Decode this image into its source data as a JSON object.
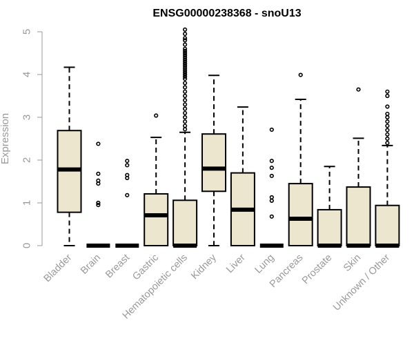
{
  "chart_data": {
    "type": "box",
    "title": "ENSG00000238368 - snoU13",
    "xlabel": "",
    "ylabel": "Expression",
    "ylim": [
      0,
      5
    ],
    "yticks": [
      0,
      1,
      2,
      3,
      4,
      5
    ],
    "grid": false,
    "legend": "none",
    "box_color": "#EDE6CE",
    "categories": [
      "Bladder",
      "Brain",
      "Breast",
      "Gastric",
      "Hematopoietic cells",
      "Kidney",
      "Liver",
      "Lung",
      "Pancreas",
      "Prostate",
      "Skin",
      "Unknown / Other"
    ],
    "boxes": [
      {
        "category": "Bladder",
        "whisker_low": 0,
        "q1": 0.78,
        "median": 1.78,
        "q3": 2.69,
        "whisker_high": 4.17,
        "outliers": []
      },
      {
        "category": "Brain",
        "whisker_low": 0,
        "q1": 0,
        "median": 0,
        "q3": 0,
        "whisker_high": 0,
        "outliers": [
          0.95,
          1.0,
          1.45,
          1.52,
          1.68,
          2.38
        ]
      },
      {
        "category": "Breast",
        "whisker_low": 0,
        "q1": 0,
        "median": 0,
        "q3": 0,
        "whisker_high": 0,
        "outliers": [
          1.18,
          1.58,
          1.65,
          1.88,
          1.98
        ]
      },
      {
        "category": "Gastric",
        "whisker_low": 0,
        "q1": 0,
        "median": 0.71,
        "q3": 1.21,
        "whisker_high": 2.53,
        "outliers": [
          3.04
        ]
      },
      {
        "category": "Hematopoietic cells",
        "whisker_low": 0,
        "q1": 0,
        "median": 0,
        "q3": 1.06,
        "whisker_high": 2.65,
        "outliers": [
          2.72,
          2.8,
          2.9,
          3.0,
          3.1,
          3.2,
          3.3,
          3.4,
          3.5,
          3.6,
          3.7,
          3.8,
          3.9,
          3.95,
          4.0,
          4.05,
          4.1,
          4.15,
          4.2,
          4.25,
          4.3,
          4.35,
          4.4,
          4.45,
          4.5,
          4.55,
          4.6,
          4.7,
          4.8,
          4.85,
          4.95,
          5.05
        ]
      },
      {
        "category": "Kidney",
        "whisker_low": 0,
        "q1": 1.27,
        "median": 1.8,
        "q3": 2.61,
        "whisker_high": 3.98,
        "outliers": []
      },
      {
        "category": "Liver",
        "whisker_low": 0,
        "q1": 0,
        "median": 0.84,
        "q3": 1.7,
        "whisker_high": 3.24,
        "outliers": []
      },
      {
        "category": "Lung",
        "whisker_low": 0,
        "q1": 0,
        "median": 0,
        "q3": 0,
        "whisker_high": 0,
        "outliers": [
          0.68,
          1.05,
          1.13,
          1.63,
          1.82,
          1.98,
          2.71
        ]
      },
      {
        "category": "Pancreas",
        "whisker_low": 0,
        "q1": 0,
        "median": 0.63,
        "q3": 1.45,
        "whisker_high": 3.42,
        "outliers": [
          3.99
        ]
      },
      {
        "category": "Prostate",
        "whisker_low": 0,
        "q1": 0,
        "median": 0,
        "q3": 0.84,
        "whisker_high": 1.85,
        "outliers": []
      },
      {
        "category": "Skin",
        "whisker_low": 0,
        "q1": 0,
        "median": 0,
        "q3": 1.37,
        "whisker_high": 2.51,
        "outliers": [
          3.65
        ]
      },
      {
        "category": "Unknown / Other",
        "whisker_low": 0,
        "q1": 0,
        "median": 0,
        "q3": 0.94,
        "whisker_high": 2.34,
        "outliers": [
          2.4,
          2.5,
          2.6,
          2.7,
          2.8,
          2.9,
          3.0,
          3.08,
          3.25,
          3.5,
          3.6
        ]
      }
    ]
  }
}
